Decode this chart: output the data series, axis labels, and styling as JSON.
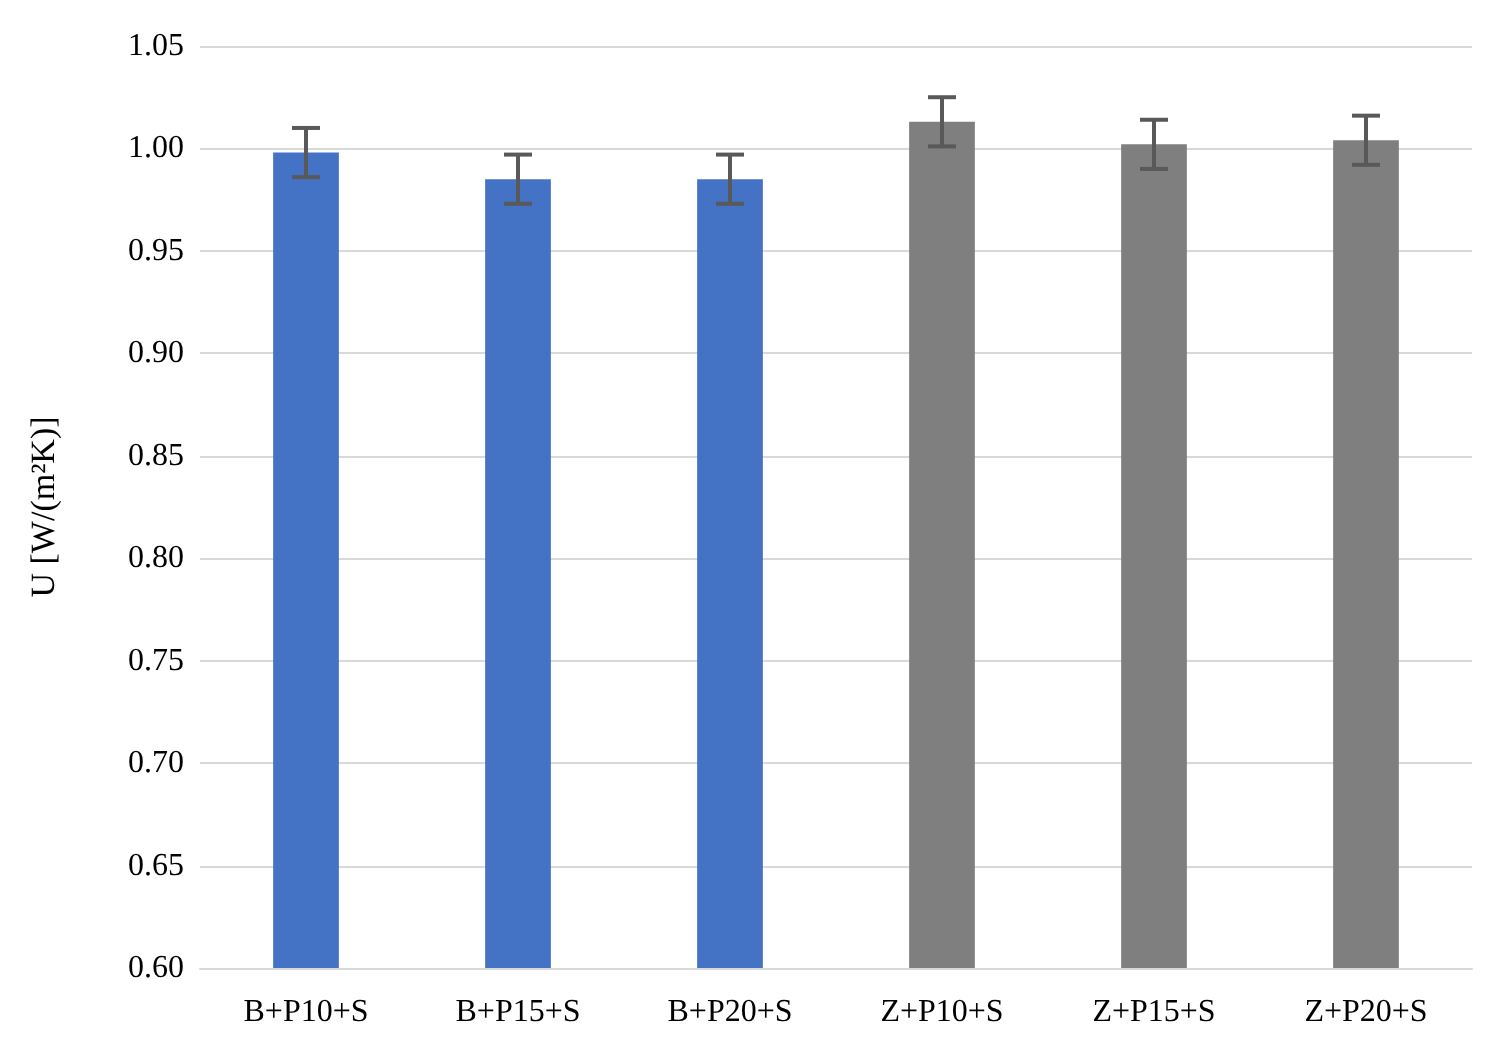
{
  "chart_data": {
    "type": "bar",
    "ylabel": "U [W/(m²K)]",
    "categories": [
      "B+P10+S",
      "B+P15+S",
      "B+P20+S",
      "Z+P10+S",
      "Z+P15+S",
      "Z+P20+S"
    ],
    "values": [
      0.998,
      0.985,
      0.985,
      1.013,
      1.002,
      1.004
    ],
    "colors": [
      "#4472c4",
      "#4472c4",
      "#4472c4",
      "#7f7f7f",
      "#7f7f7f",
      "#7f7f7f"
    ],
    "errors": [
      0.012,
      0.012,
      0.012,
      0.012,
      0.012,
      0.012
    ],
    "ylim": [
      0.6,
      1.05
    ],
    "yticks": [
      {
        "value": 0.6,
        "label": "0.60"
      },
      0.65,
      {
        "value": 0.7,
        "label": "0.70"
      },
      0.75,
      {
        "value": 0.8,
        "label": "0.80"
      },
      0.85,
      {
        "value": 0.9,
        "label": "0.90"
      },
      0.95,
      {
        "value": 1.0,
        "label": "1.00"
      },
      1.05
    ],
    "grid": true
  }
}
